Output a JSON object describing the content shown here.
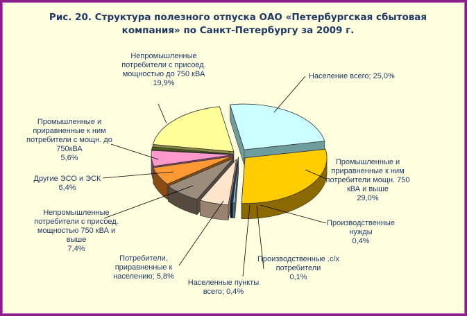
{
  "chart_data": {
    "type": "pie",
    "title_lines": [
      "Рис. 20. Структура полезного отпуска ОАО «Петербургская сбытовая",
      "компания» по Санкт-Петербургу за 2009 г."
    ],
    "slices": [
      {
        "label_lines": [
          "Население  всего; 25,0%"
        ],
        "value": 25.0,
        "color": "#ccffff",
        "dark": "#6f9c9c"
      },
      {
        "label_lines": [
          "Промышленные и",
          "приравненные к ним",
          "потребители  мощн. 750",
          "кВА и выше",
          "29,0%"
        ],
        "value": 29.0,
        "color": "#ffcc00",
        "dark": "#8a6a00"
      },
      {
        "label_lines": [
          "Производственные",
          "нужды",
          "0,4%"
        ],
        "value": 0.4,
        "color": "#a0c8e0",
        "dark": "#4a6f86"
      },
      {
        "label_lines": [
          "Производственные .с/х",
          "потребители",
          "0,1%"
        ],
        "value": 0.1,
        "color": "#008080",
        "dark": "#004848"
      },
      {
        "label_lines": [
          "Населенные пункты",
          "всего; 0,4%"
        ],
        "value": 0.4,
        "color": "#003366",
        "dark": "#001a33"
      },
      {
        "label_lines": [
          "Потребители,",
          "приравненные к",
          "населению; 5,8%"
        ],
        "value": 5.8,
        "color": "#ffe4cc",
        "dark": "#9a8270"
      },
      {
        "label_lines": [
          "Непромышленные",
          "потребители с присоед.",
          "мощностью 750 кВА и",
          "выше",
          "7,4%"
        ],
        "value": 7.4,
        "color": "#9c8c7c",
        "dark": "#564a3e"
      },
      {
        "label_lines": [
          "Другие ЭСО и ЭСК",
          "6,4%"
        ],
        "value": 6.4,
        "color": "#ff9933",
        "dark": "#8a4c10"
      },
      {
        "label_lines": [
          "Промышленные и",
          "приравненные к ним",
          "потребители с мощн. до",
          "750кВА",
          "5,6%"
        ],
        "value": 5.6,
        "color": "#ff99cc",
        "dark": "#8a4466"
      },
      {
        "label_lines": [
          "",
          "",
          "",
          "",
          ""
        ],
        "value": 1.0,
        "color": "#4b5e1a",
        "dark": "#2a350e"
      },
      {
        "label_lines": [
          "Непромышленные",
          "потребители с присоед.",
          "мощностью до 750 кВА",
          "19,9%"
        ],
        "value": 19.9,
        "color": "#ffff99",
        "dark": "#8a8a40"
      }
    ]
  }
}
